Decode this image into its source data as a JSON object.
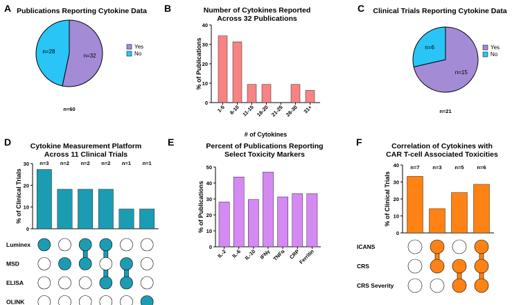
{
  "colors": {
    "purple": "#a38bd6",
    "cyan": "#29c5f6",
    "salmon": "#f78383",
    "teal": "#1c9cb3",
    "violet": "#d48af2",
    "orange": "#ff8214"
  },
  "chart_data": [
    {
      "id": "A",
      "type": "pie",
      "title": "Publications Reporting Cytokine Data",
      "slices": [
        {
          "label": "Yes",
          "value": 32,
          "text": "n=32",
          "color": "#a38bd6"
        },
        {
          "label": "No",
          "value": 28,
          "text": "n=28",
          "color": "#29c5f6"
        }
      ],
      "total_text": "n=60"
    },
    {
      "id": "B",
      "type": "bar",
      "title_lines": [
        "Number of Cytokines Reported",
        "Across 32 Publications"
      ],
      "categories": [
        "1-5",
        "6-10",
        "11-15",
        "16-20",
        "21-25",
        "26-30",
        "31+"
      ],
      "values": [
        34.4,
        31.3,
        9.4,
        9.4,
        0,
        9.4,
        6.3
      ],
      "xlabel": "# of Cytokines",
      "ylabel": "% of Publications",
      "ylim": [
        0,
        40
      ],
      "yticks": [
        "0",
        "10",
        "20",
        "30",
        "40"
      ],
      "color": "#f78383"
    },
    {
      "id": "C",
      "type": "pie",
      "title": "Clinical Trials Reporting Cytokine Data",
      "slices": [
        {
          "label": "Yes",
          "value": 15,
          "text": "n=15",
          "color": "#a38bd6"
        },
        {
          "label": "No",
          "value": 6,
          "text": "n=6",
          "color": "#29c5f6"
        }
      ],
      "total_text": "n=21"
    },
    {
      "id": "D",
      "type": "bar",
      "title_lines": [
        "Cytokine Measurement Platform",
        "Across 11 Clinical Trials"
      ],
      "values": [
        27.3,
        18.2,
        18.2,
        18.2,
        9.1,
        9.1
      ],
      "n_labels": [
        "n=3",
        "n=2",
        "n=2",
        "n=2",
        "n=1",
        "n=1"
      ],
      "ylabel": "% of Clinical Trials",
      "ylim": [
        0,
        30
      ],
      "yticks": [
        "0",
        "10",
        "20",
        "30"
      ],
      "color": "#1c9cb3",
      "matrix_rows": [
        "Luminex",
        "MSD",
        "ELISA",
        "OLINK"
      ],
      "matrix_columns": [
        [
          0
        ],
        [
          1
        ],
        [
          0,
          1
        ],
        [
          0,
          2
        ],
        [
          1,
          2
        ],
        [
          3
        ]
      ]
    },
    {
      "id": "E",
      "type": "bar",
      "title_lines": [
        "Percent of Publications Reporting",
        "Select Toxicity Markers"
      ],
      "categories": [
        "IL-2",
        "IL-6",
        "IL-10",
        "IFNγ",
        "TNFα",
        "CRP",
        "Ferritin"
      ],
      "values": [
        28.1,
        43.8,
        29.7,
        46.9,
        31.3,
        33.3,
        33.3
      ],
      "ylabel": "% of Publications",
      "ylim": [
        0,
        50
      ],
      "yticks": [
        "0",
        "10",
        "20",
        "30",
        "40",
        "50"
      ],
      "color": "#d48af2"
    },
    {
      "id": "F",
      "type": "bar",
      "title_lines": [
        "Correlation of Cytokines with",
        "CAR T-cell Associated Toxicities"
      ],
      "values": [
        33.3,
        14.3,
        23.8,
        28.6
      ],
      "n_labels": [
        "n=7",
        "n=3",
        "n=5",
        "n=6"
      ],
      "ylabel": "% of Clinical Trials",
      "ylim": [
        0,
        40
      ],
      "yticks": [
        "0",
        "10",
        "20",
        "30",
        "40"
      ],
      "color": "#ff8214",
      "matrix_rows": [
        "ICANS",
        "CRS",
        "CRS Severity"
      ],
      "matrix_columns": [
        [],
        [
          0,
          1
        ],
        [
          1,
          2
        ],
        [
          0,
          1,
          2
        ]
      ]
    }
  ]
}
